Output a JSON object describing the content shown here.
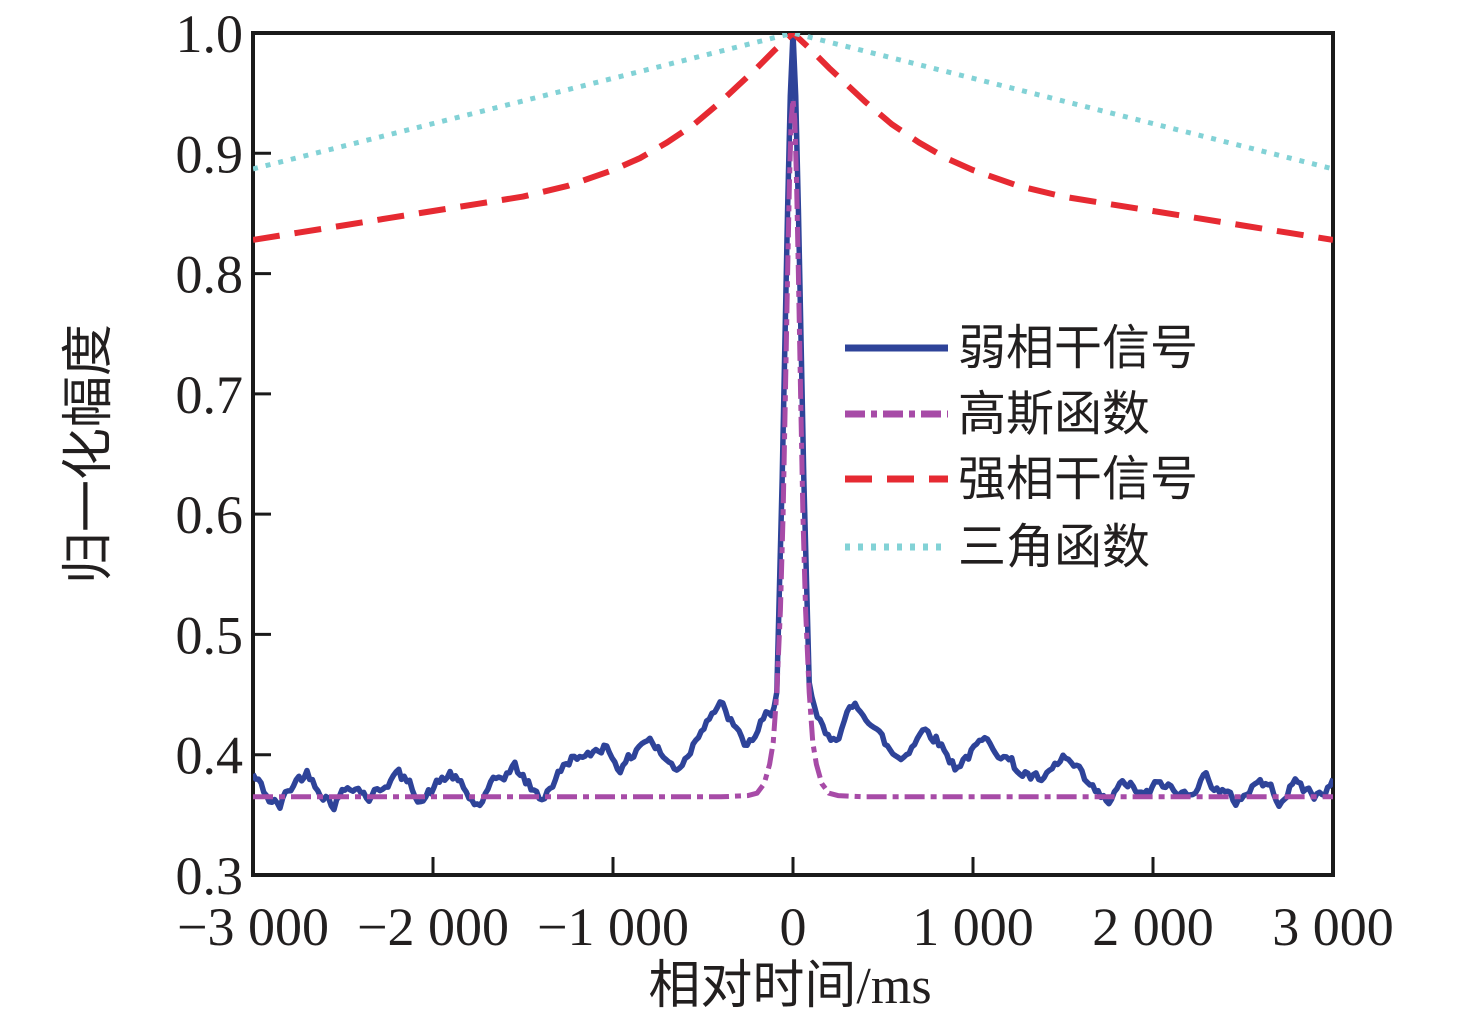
{
  "figure": {
    "background": "#ffffff",
    "axis_color": "#1a1a1a",
    "text_color": "#221f1f"
  },
  "axes": {
    "x_label": "相对时间/ms",
    "y_label": "归一化幅度",
    "x_range": [
      -3000,
      3000
    ],
    "y_range": [
      0.3,
      1.0
    ],
    "x_ticks": [
      {
        "value": -3000,
        "label": "−3 000"
      },
      {
        "value": -2000,
        "label": "−2 000"
      },
      {
        "value": -1000,
        "label": "−1 000"
      },
      {
        "value": 0,
        "label": "0"
      },
      {
        "value": 1000,
        "label": "1 000"
      },
      {
        "value": 2000,
        "label": "2 000"
      },
      {
        "value": 3000,
        "label": "3 000"
      }
    ],
    "y_ticks": [
      {
        "value": 0.3,
        "label": "0.3"
      },
      {
        "value": 0.4,
        "label": "0.4"
      },
      {
        "value": 0.5,
        "label": "0.5"
      },
      {
        "value": 0.6,
        "label": "0.6"
      },
      {
        "value": 0.7,
        "label": "0.7"
      },
      {
        "value": 0.8,
        "label": "0.8"
      },
      {
        "value": 0.9,
        "label": "0.9"
      },
      {
        "value": 1.0,
        "label": "1.0"
      }
    ]
  },
  "legend": {
    "position": "center-right",
    "items": [
      {
        "label": "弱相干信号",
        "series": "weak-coherent"
      },
      {
        "label": "高斯函数",
        "series": "gaussian"
      },
      {
        "label": "强相干信号",
        "series": "strong-coherent"
      },
      {
        "label": "三角函数",
        "series": "triangle"
      }
    ]
  },
  "chart_data": {
    "type": "line",
    "title": "",
    "xlabel": "相对时间/ms",
    "ylabel": "归一化幅度",
    "xlim": [
      -3000,
      3000
    ],
    "ylim": [
      0.3,
      1.0
    ],
    "grid": false,
    "legend_position": "center-right",
    "series": [
      {
        "name": "弱相干信号",
        "id": "weak-coherent",
        "color": "#2E4399",
        "style": "solid",
        "width": 5.5,
        "noise": {
          "seed": 42,
          "step_ms": 15,
          "amplitude": 0.0055,
          "exclude_abs_ms_below": 120
        },
        "points": [
          [
            -3000,
            0.383
          ],
          [
            -2950,
            0.372
          ],
          [
            -2900,
            0.361
          ],
          [
            -2850,
            0.357
          ],
          [
            -2800,
            0.371
          ],
          [
            -2750,
            0.38
          ],
          [
            -2700,
            0.385
          ],
          [
            -2650,
            0.377
          ],
          [
            -2600,
            0.367
          ],
          [
            -2550,
            0.36
          ],
          [
            -2500,
            0.369
          ],
          [
            -2450,
            0.377
          ],
          [
            -2400,
            0.371
          ],
          [
            -2350,
            0.364
          ],
          [
            -2300,
            0.371
          ],
          [
            -2250,
            0.379
          ],
          [
            -2200,
            0.384
          ],
          [
            -2150,
            0.377
          ],
          [
            -2100,
            0.369
          ],
          [
            -2050,
            0.364
          ],
          [
            -2000,
            0.371
          ],
          [
            -1950,
            0.379
          ],
          [
            -1900,
            0.384
          ],
          [
            -1850,
            0.374
          ],
          [
            -1800,
            0.364
          ],
          [
            -1750,
            0.357
          ],
          [
            -1700,
            0.367
          ],
          [
            -1650,
            0.377
          ],
          [
            -1600,
            0.384
          ],
          [
            -1550,
            0.39
          ],
          [
            -1500,
            0.381
          ],
          [
            -1450,
            0.371
          ],
          [
            -1400,
            0.363
          ],
          [
            -1350,
            0.374
          ],
          [
            -1300,
            0.384
          ],
          [
            -1250,
            0.394
          ],
          [
            -1200,
            0.401
          ],
          [
            -1150,
            0.394
          ],
          [
            -1100,
            0.403
          ],
          [
            -1050,
            0.409
          ],
          [
            -1000,
            0.399
          ],
          [
            -950,
            0.389
          ],
          [
            -900,
            0.397
          ],
          [
            -850,
            0.411
          ],
          [
            -800,
            0.414
          ],
          [
            -750,
            0.404
          ],
          [
            -700,
            0.394
          ],
          [
            -650,
            0.389
          ],
          [
            -600,
            0.397
          ],
          [
            -550,
            0.411
          ],
          [
            -500,
            0.427
          ],
          [
            -450,
            0.437
          ],
          [
            -400,
            0.44
          ],
          [
            -350,
            0.429
          ],
          [
            -300,
            0.414
          ],
          [
            -250,
            0.407
          ],
          [
            -200,
            0.419
          ],
          [
            -150,
            0.431
          ],
          [
            -120,
            0.427
          ],
          [
            -90,
            0.452
          ],
          [
            -60,
            0.63
          ],
          [
            -40,
            0.78
          ],
          [
            -25,
            0.89
          ],
          [
            -12,
            0.965
          ],
          [
            0,
            1.0
          ],
          [
            12,
            0.965
          ],
          [
            25,
            0.89
          ],
          [
            40,
            0.78
          ],
          [
            60,
            0.63
          ],
          [
            90,
            0.46
          ],
          [
            120,
            0.436
          ],
          [
            150,
            0.425
          ],
          [
            200,
            0.412
          ],
          [
            250,
            0.419
          ],
          [
            300,
            0.431
          ],
          [
            350,
            0.44
          ],
          [
            400,
            0.437
          ],
          [
            450,
            0.424
          ],
          [
            500,
            0.411
          ],
          [
            550,
            0.401
          ],
          [
            600,
            0.397
          ],
          [
            650,
            0.407
          ],
          [
            700,
            0.417
          ],
          [
            750,
            0.423
          ],
          [
            800,
            0.414
          ],
          [
            850,
            0.401
          ],
          [
            900,
            0.391
          ],
          [
            950,
            0.397
          ],
          [
            1000,
            0.403
          ],
          [
            1050,
            0.409
          ],
          [
            1100,
            0.411
          ],
          [
            1150,
            0.404
          ],
          [
            1200,
            0.395
          ],
          [
            1250,
            0.387
          ],
          [
            1300,
            0.384
          ],
          [
            1350,
            0.379
          ],
          [
            1400,
            0.377
          ],
          [
            1450,
            0.387
          ],
          [
            1500,
            0.397
          ],
          [
            1550,
            0.391
          ],
          [
            1600,
            0.381
          ],
          [
            1650,
            0.372
          ],
          [
            1700,
            0.365
          ],
          [
            1750,
            0.359
          ],
          [
            1800,
            0.369
          ],
          [
            1850,
            0.377
          ],
          [
            1900,
            0.371
          ],
          [
            1950,
            0.364
          ],
          [
            2000,
            0.371
          ],
          [
            2050,
            0.377
          ],
          [
            2100,
            0.371
          ],
          [
            2150,
            0.365
          ],
          [
            2200,
            0.371
          ],
          [
            2250,
            0.377
          ],
          [
            2300,
            0.382
          ],
          [
            2350,
            0.374
          ],
          [
            2400,
            0.367
          ],
          [
            2450,
            0.359
          ],
          [
            2500,
            0.367
          ],
          [
            2550,
            0.374
          ],
          [
            2600,
            0.379
          ],
          [
            2650,
            0.371
          ],
          [
            2700,
            0.364
          ],
          [
            2750,
            0.371
          ],
          [
            2800,
            0.377
          ],
          [
            2850,
            0.371
          ],
          [
            2900,
            0.365
          ],
          [
            2950,
            0.371
          ],
          [
            3000,
            0.377
          ]
        ]
      },
      {
        "name": "高斯函数",
        "id": "gaussian",
        "color": "#A74BA7",
        "style": "dashdot",
        "width": 5,
        "points": [
          [
            -3000,
            0.365
          ],
          [
            -1000,
            0.365
          ],
          [
            -400,
            0.365
          ],
          [
            -250,
            0.366
          ],
          [
            -200,
            0.368
          ],
          [
            -160,
            0.376
          ],
          [
            -130,
            0.392
          ],
          [
            -110,
            0.41
          ],
          [
            -90,
            0.452
          ],
          [
            -70,
            0.52
          ],
          [
            -55,
            0.6
          ],
          [
            -42,
            0.7
          ],
          [
            -30,
            0.8
          ],
          [
            -20,
            0.875
          ],
          [
            -10,
            0.928
          ],
          [
            0,
            0.945
          ],
          [
            10,
            0.928
          ],
          [
            20,
            0.875
          ],
          [
            30,
            0.8
          ],
          [
            42,
            0.7
          ],
          [
            55,
            0.6
          ],
          [
            70,
            0.52
          ],
          [
            90,
            0.452
          ],
          [
            110,
            0.41
          ],
          [
            130,
            0.392
          ],
          [
            160,
            0.376
          ],
          [
            200,
            0.368
          ],
          [
            250,
            0.366
          ],
          [
            400,
            0.365
          ],
          [
            1000,
            0.365
          ],
          [
            3000,
            0.365
          ]
        ]
      },
      {
        "name": "强相干信号",
        "id": "strong-coherent",
        "color": "#E62A32",
        "style": "dashed",
        "width": 6,
        "points": [
          [
            -3000,
            0.828
          ],
          [
            -2750,
            0.834
          ],
          [
            -2500,
            0.84
          ],
          [
            -2250,
            0.846
          ],
          [
            -2000,
            0.852
          ],
          [
            -1750,
            0.858
          ],
          [
            -1500,
            0.864
          ],
          [
            -1250,
            0.873
          ],
          [
            -1000,
            0.886
          ],
          [
            -850,
            0.896
          ],
          [
            -700,
            0.909
          ],
          [
            -550,
            0.924
          ],
          [
            -400,
            0.943
          ],
          [
            -300,
            0.957
          ],
          [
            -200,
            0.971
          ],
          [
            -100,
            0.986
          ],
          [
            0,
            1.0
          ],
          [
            100,
            0.986
          ],
          [
            200,
            0.971
          ],
          [
            300,
            0.957
          ],
          [
            400,
            0.943
          ],
          [
            550,
            0.924
          ],
          [
            700,
            0.909
          ],
          [
            850,
            0.896
          ],
          [
            1000,
            0.886
          ],
          [
            1250,
            0.873
          ],
          [
            1500,
            0.864
          ],
          [
            1750,
            0.858
          ],
          [
            2000,
            0.852
          ],
          [
            2250,
            0.846
          ],
          [
            2500,
            0.84
          ],
          [
            2750,
            0.834
          ],
          [
            3000,
            0.828
          ]
        ]
      },
      {
        "name": "三角函数",
        "id": "triangle",
        "color": "#82D2D6",
        "style": "dotted",
        "width": 5,
        "points": [
          [
            -3000,
            0.887
          ],
          [
            0,
            1.0
          ],
          [
            3000,
            0.887
          ]
        ]
      }
    ]
  }
}
